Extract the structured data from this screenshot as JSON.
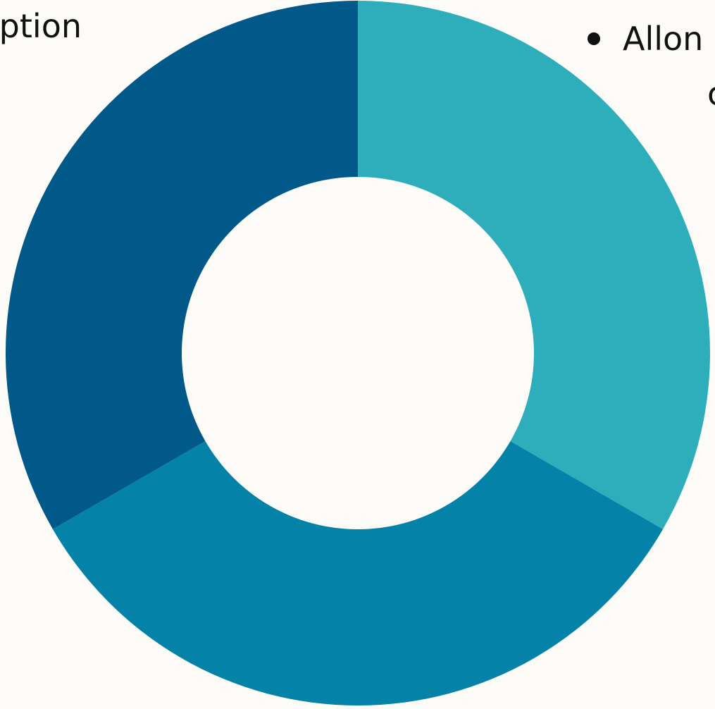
{
  "texts": {
    "left_caption": "ption",
    "right_caption": "Allon",
    "right_caption_line2": "c"
  },
  "chart_data": {
    "type": "pie",
    "hole_ratio": 0.5,
    "start_angle_deg": 0,
    "direction": "clockwise",
    "slices": [
      {
        "label": "",
        "value": 33.33,
        "color": "#2eaebb"
      },
      {
        "label": "",
        "value": 33.34,
        "color": "#0482a8"
      },
      {
        "label": "",
        "value": 33.33,
        "color": "#01598a"
      }
    ],
    "legend": "top-right"
  }
}
